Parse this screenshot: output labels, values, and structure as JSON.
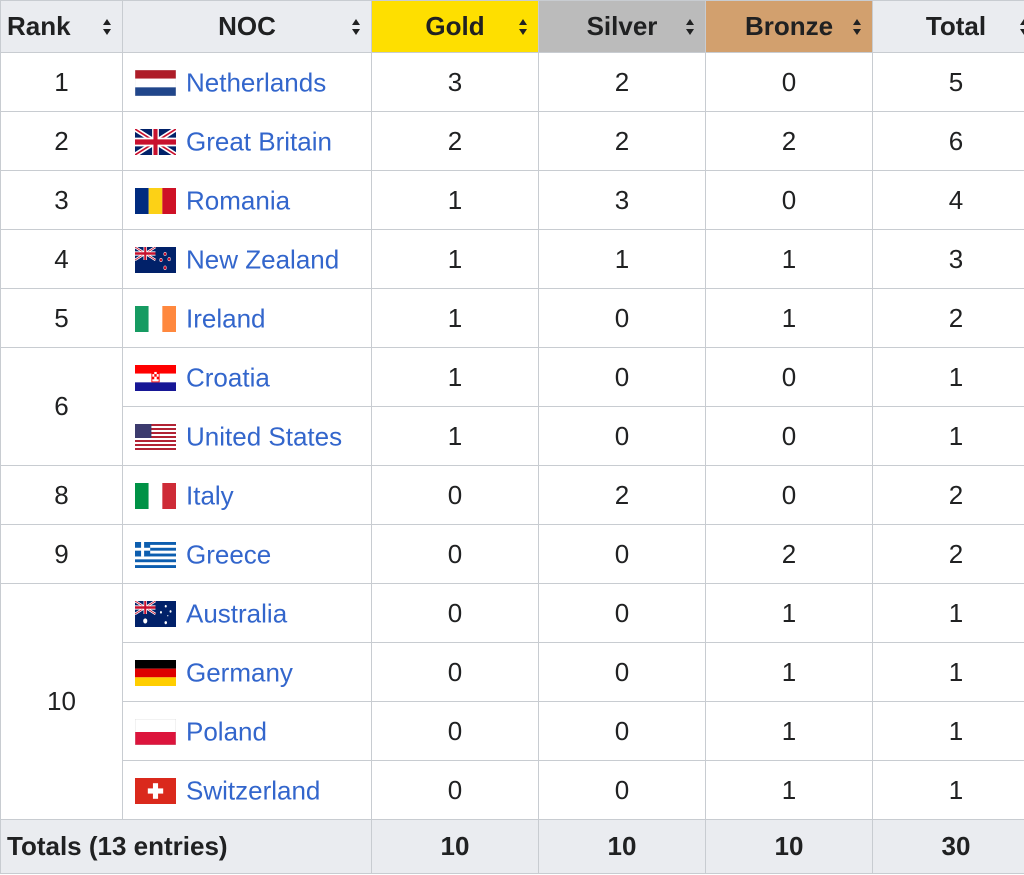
{
  "header": {
    "rank": "Rank",
    "noc": "NOC",
    "gold": "Gold",
    "silver": "Silver",
    "bronze": "Bronze",
    "total": "Total"
  },
  "colors": {
    "gold": "#fedf00",
    "silver": "#bbbbbb",
    "bronze": "#d2a06e",
    "link": "#3366cc"
  },
  "sort_icon": "sort-arrows-icon",
  "rows": [
    {
      "rank": "1",
      "country": "Netherlands",
      "flag": "netherlands-flag-icon",
      "gold": "3",
      "silver": "2",
      "bronze": "0",
      "total": "5"
    },
    {
      "rank": "2",
      "country": "Great Britain",
      "flag": "great-britain-flag-icon",
      "gold": "2",
      "silver": "2",
      "bronze": "2",
      "total": "6"
    },
    {
      "rank": "3",
      "country": "Romania",
      "flag": "romania-flag-icon",
      "gold": "1",
      "silver": "3",
      "bronze": "0",
      "total": "4"
    },
    {
      "rank": "4",
      "country": "New Zealand",
      "flag": "new-zealand-flag-icon",
      "gold": "1",
      "silver": "1",
      "bronze": "1",
      "total": "3"
    },
    {
      "rank": "5",
      "country": "Ireland",
      "flag": "ireland-flag-icon",
      "gold": "1",
      "silver": "0",
      "bronze": "1",
      "total": "2"
    },
    {
      "rank": "6",
      "country": "Croatia",
      "flag": "croatia-flag-icon",
      "gold": "1",
      "silver": "0",
      "bronze": "0",
      "total": "1"
    },
    {
      "rank": "",
      "country": "United States",
      "flag": "united-states-flag-icon",
      "gold": "1",
      "silver": "0",
      "bronze": "0",
      "total": "1"
    },
    {
      "rank": "8",
      "country": "Italy",
      "flag": "italy-flag-icon",
      "gold": "0",
      "silver": "2",
      "bronze": "0",
      "total": "2"
    },
    {
      "rank": "9",
      "country": "Greece",
      "flag": "greece-flag-icon",
      "gold": "0",
      "silver": "0",
      "bronze": "2",
      "total": "2"
    },
    {
      "rank": "10",
      "country": "Australia",
      "flag": "australia-flag-icon",
      "gold": "0",
      "silver": "0",
      "bronze": "1",
      "total": "1"
    },
    {
      "rank": "",
      "country": "Germany",
      "flag": "germany-flag-icon",
      "gold": "0",
      "silver": "0",
      "bronze": "1",
      "total": "1"
    },
    {
      "rank": "",
      "country": "Poland",
      "flag": "poland-flag-icon",
      "gold": "0",
      "silver": "0",
      "bronze": "1",
      "total": "1"
    },
    {
      "rank": "",
      "country": "Switzerland",
      "flag": "switzerland-flag-icon",
      "gold": "0",
      "silver": "0",
      "bronze": "1",
      "total": "1"
    }
  ],
  "totals": {
    "label": "Totals (13 entries)",
    "gold": "10",
    "silver": "10",
    "bronze": "10",
    "total": "30"
  }
}
